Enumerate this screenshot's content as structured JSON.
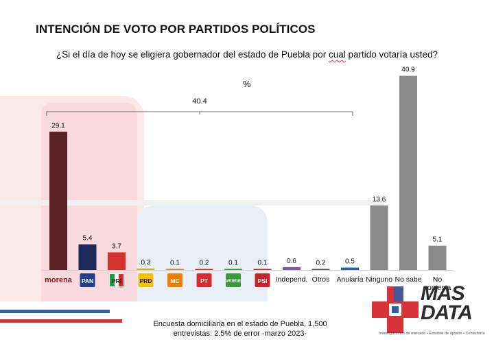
{
  "header": {
    "title": "INTENCIÓN DE VOTO POR PARTIDOS POLÍTICOS",
    "question_before": "¿Si el día de hoy se eligiera gobernador del estado de Puebla por ",
    "question_squiggle": "cual",
    "question_after": " partido votaría usted?",
    "unit": "%"
  },
  "chart_data": {
    "type": "bar",
    "categories": [
      "morena",
      "PAN",
      "PRI",
      "PRD",
      "MC",
      "PT",
      "VERDE",
      "PSI",
      "Independ.",
      "Otros",
      "Anularía",
      "Ninguno",
      "No sabe",
      "No contesta"
    ],
    "values": [
      29.1,
      5.4,
      3.7,
      0.3,
      0.1,
      0.2,
      0.1,
      0.1,
      0.6,
      0.2,
      0.5,
      13.6,
      40.9,
      5.1
    ],
    "value_labels": [
      "29.1",
      "5.4",
      "3.7",
      "0.3",
      "0.1",
      "0.2",
      "0.1",
      "0.1",
      "0.6",
      "0.2",
      "0.5",
      "13.6",
      "40.9",
      "5.1"
    ],
    "bar_colors": [
      "#5a2126",
      "#1f2a5c",
      "#d6322f",
      "#e0b000",
      "#e8762c",
      "#d8292f",
      "#3a9a3a",
      "#c8242a",
      "#7b5aa6",
      "#555555",
      "#2d5fa6",
      "#8a8a8a",
      "#8a8a8a",
      "#8a8a8a"
    ],
    "text_category_labels": [
      "Independ.",
      "Otros",
      "Anularía",
      "Ninguno",
      "No sabe",
      "No contesta"
    ],
    "logo_labels": [
      "morena",
      "PAN",
      "PRI",
      "PRD",
      "MC",
      "PT",
      "VERDE",
      "PSI"
    ],
    "bracket_total": "40.4",
    "ylim": [
      0,
      42
    ],
    "grid": false,
    "legend": "none"
  },
  "footer": {
    "source_line1": "Encuesta domiciliaria en el estado de Puebla, 1,500",
    "source_line2": "entrevistas: 2.5% de error -marzo 2023-"
  },
  "brand": {
    "name_top": "MAS",
    "name_bottom": "DATA",
    "tagline": "Investigaciones de mercado • Estudios de opinión • Consultoría",
    "colors": {
      "red": "#d8333a",
      "blue": "#2d5fa6"
    }
  }
}
